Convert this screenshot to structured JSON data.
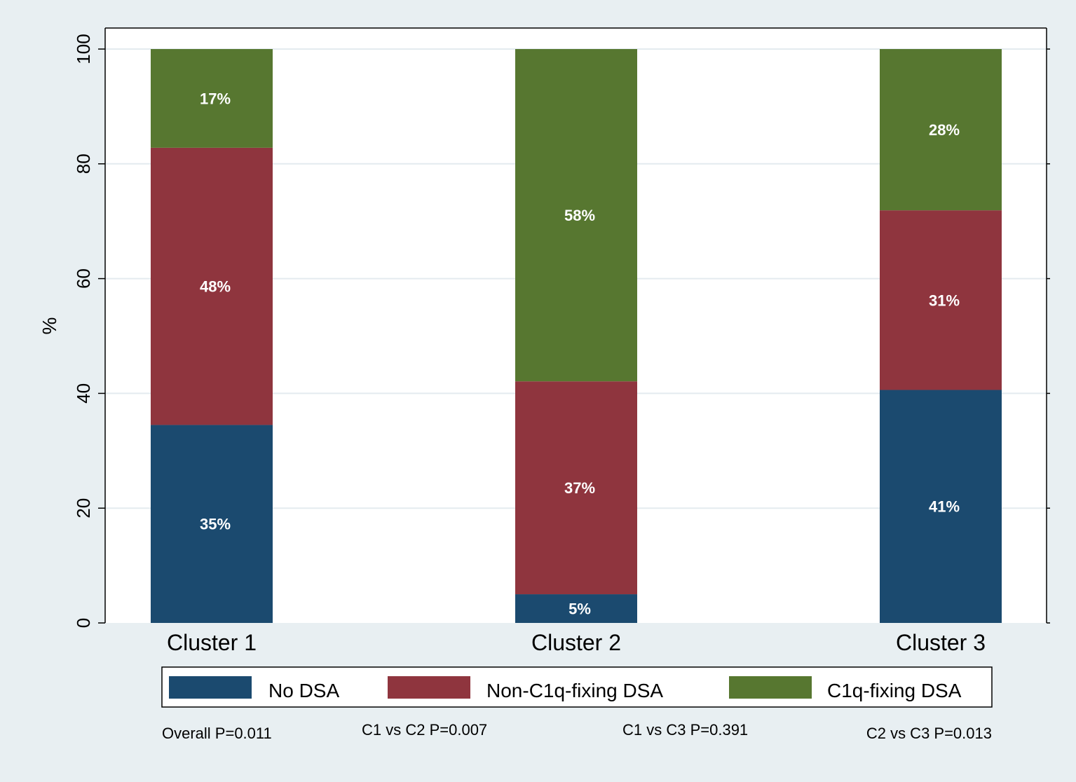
{
  "chart_data": {
    "type": "bar",
    "stacked": true,
    "categories": [
      "Cluster 1",
      "Cluster 2",
      "Cluster 3"
    ],
    "series": [
      {
        "name": "No DSA",
        "values": [
          34.5,
          5.0,
          40.6
        ],
        "labels": [
          "35%",
          "5%",
          "41%"
        ],
        "color": "#1b4a6f"
      },
      {
        "name": "Non-C1q-fixing DSA",
        "values": [
          48.3,
          37.1,
          31.3
        ],
        "labels": [
          "48%",
          "37%",
          "31%"
        ],
        "color": "#8f353e"
      },
      {
        "name": "C1q-fixing DSA",
        "values": [
          17.2,
          57.9,
          28.1
        ],
        "labels": [
          "17%",
          "58%",
          "28%"
        ],
        "color": "#577730"
      }
    ],
    "ylabel": "%",
    "ylim": [
      0,
      100
    ],
    "yticks": [
      0,
      20,
      40,
      60,
      80,
      100
    ],
    "ytick_labels": [
      "0",
      "20",
      "40",
      "60",
      "80",
      "100"
    ],
    "grid": true,
    "legend_position": "bottom",
    "annotations": [
      "Overall P=0.011",
      "C1 vs C2 P=0.007",
      "C1 vs C3 P=0.391",
      "C2 vs C3 P=0.013"
    ],
    "colors": {
      "background": "#e8eff2",
      "plot_area": "#ffffff",
      "gridline": "#e4ebef",
      "value_label": "#ffffff",
      "text": "#000000"
    }
  }
}
